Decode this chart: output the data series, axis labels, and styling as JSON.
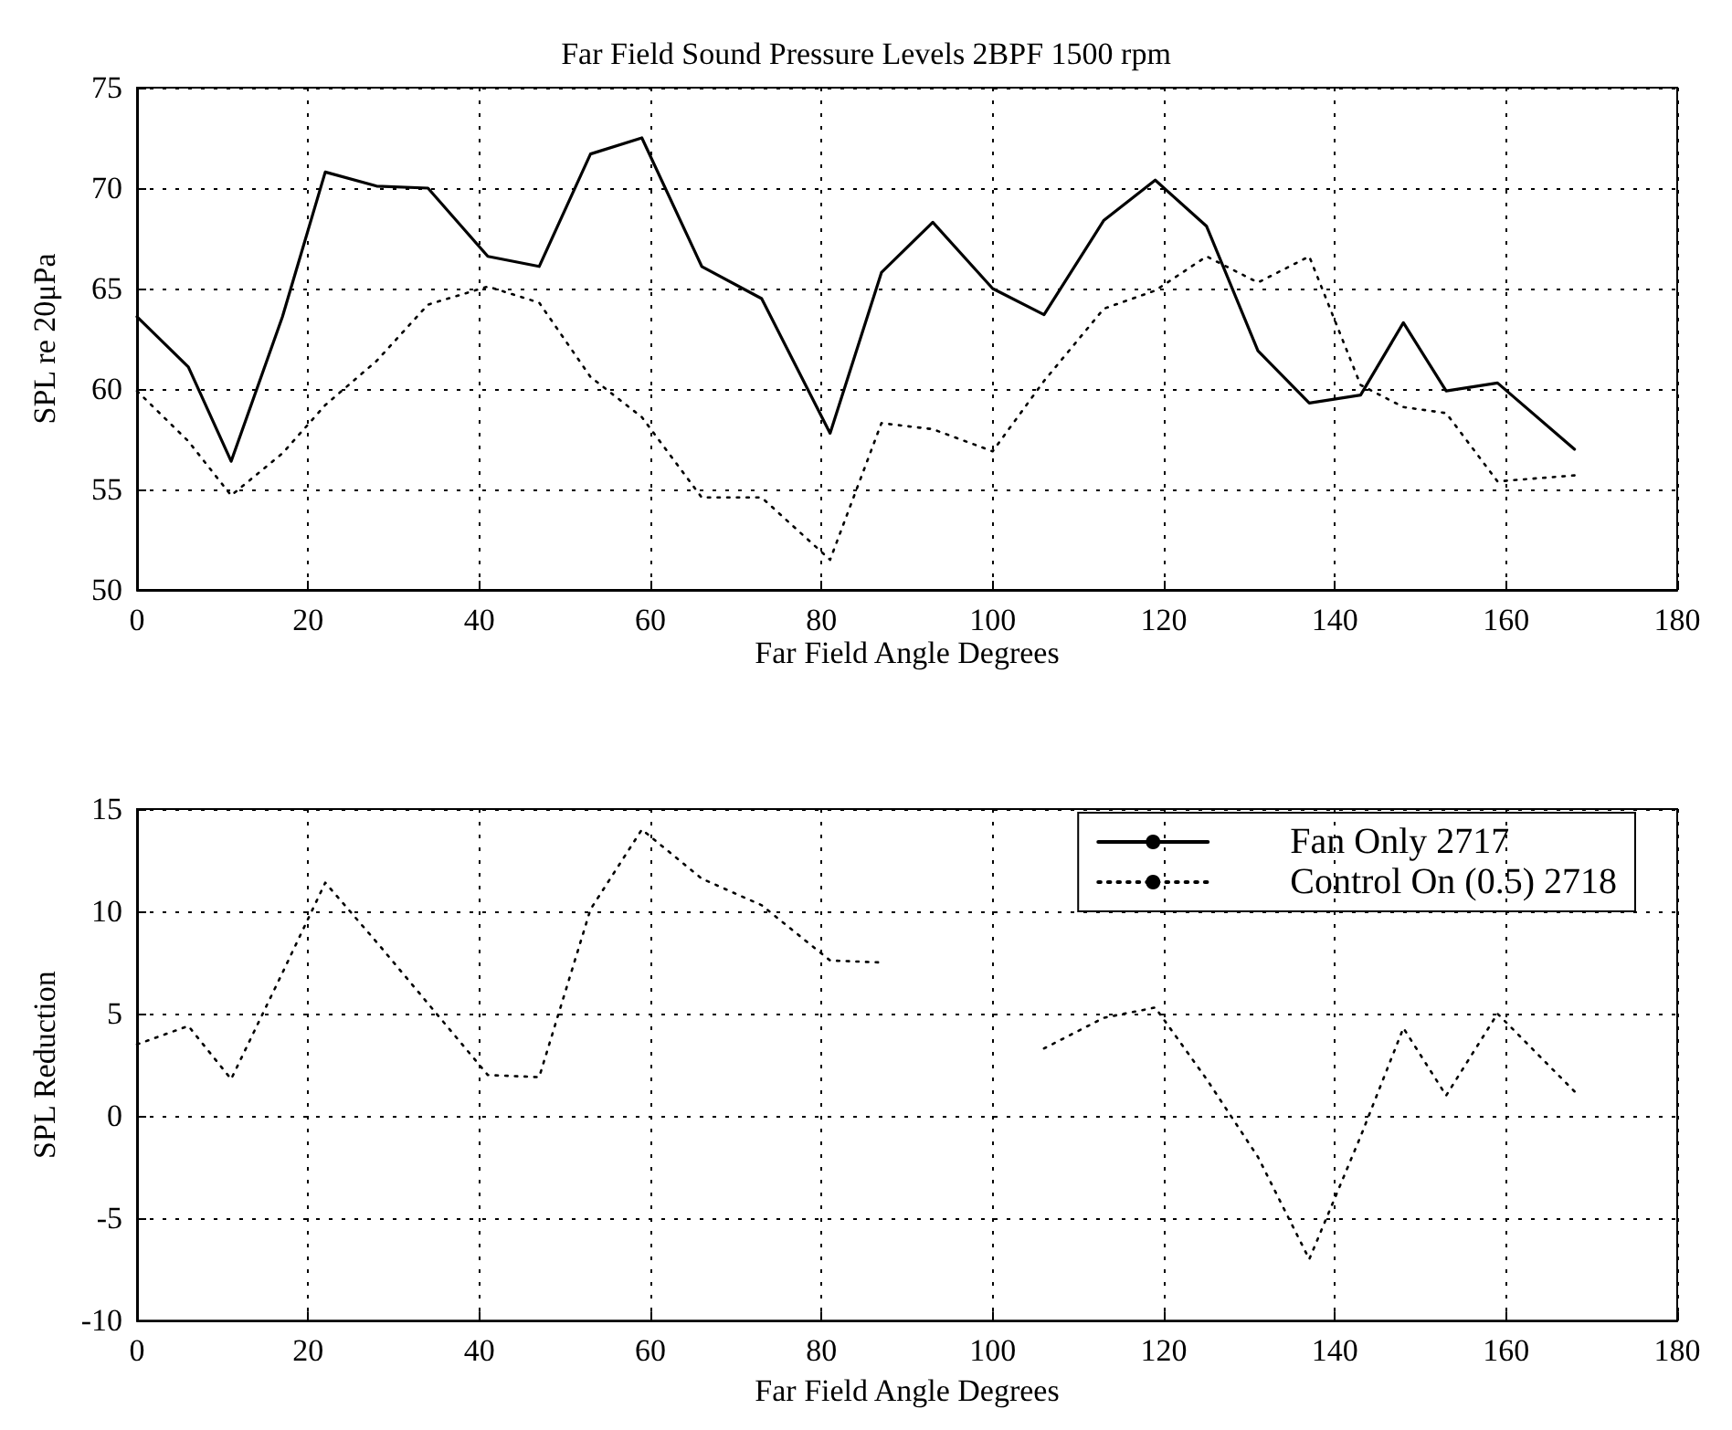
{
  "chart_data": [
    {
      "type": "line",
      "title": "Far Field Sound Pressure Levels 2BPF 1500 rpm",
      "xlabel": "Far Field Angle Degrees",
      "ylabel": "SPL re 20μPa",
      "x": [
        0,
        6,
        11,
        17,
        22,
        28,
        34,
        41,
        47,
        53,
        59,
        66,
        73,
        81,
        87,
        93,
        100,
        106,
        113,
        119,
        125,
        131,
        137,
        143,
        148,
        153,
        159,
        168
      ],
      "series": [
        {
          "name": "Fan Only 2717",
          "color": "#000000",
          "line_style": "solid",
          "values": [
            63.6,
            61.1,
            56.4,
            63.6,
            70.8,
            70.1,
            70.0,
            66.6,
            66.1,
            71.7,
            72.5,
            66.1,
            64.5,
            57.8,
            65.8,
            68.3,
            65.0,
            63.7,
            68.4,
            70.4,
            68.1,
            61.9,
            59.3,
            59.7,
            63.3,
            59.9,
            60.3,
            57.0
          ]
        },
        {
          "name": "Control On (0.5) 2718",
          "color": "#000000",
          "line_style": "dotted",
          "values": [
            59.9,
            57.4,
            54.7,
            56.8,
            59.2,
            61.4,
            64.2,
            65.1,
            64.3,
            60.6,
            58.6,
            54.6,
            54.6,
            51.5,
            58.3,
            58.0,
            56.9,
            60.4,
            64.0,
            64.9,
            66.6,
            65.3,
            66.6,
            60.2,
            59.1,
            58.8,
            55.4,
            55.7
          ]
        }
      ],
      "xlim": [
        0,
        180
      ],
      "xticks": [
        0,
        20,
        40,
        60,
        80,
        100,
        120,
        140,
        160,
        180
      ],
      "ylim": [
        50,
        75
      ],
      "yticks": [
        50,
        55,
        60,
        65,
        70,
        75
      ],
      "grid": true,
      "legend": "bottom right"
    },
    {
      "type": "line",
      "xlabel": "Far Field Angle Degrees",
      "ylabel": "SPL Reduction",
      "x": [
        0,
        6,
        11,
        17,
        22,
        28,
        34,
        41,
        47,
        53,
        59,
        66,
        73,
        81,
        87,
        93,
        100,
        106,
        113,
        119,
        125,
        131,
        137,
        143,
        148,
        153,
        159,
        168
      ],
      "series": [
        {
          "color": "#000000",
          "line_style": "dotted",
          "values": [
            3.5,
            4.4,
            1.8,
            7.0,
            11.4,
            8.5,
            5.5,
            2.0,
            1.9,
            10.1,
            14.0,
            11.6,
            10.3,
            7.6,
            7.5,
            null,
            null,
            3.3,
            4.8,
            5.3,
            1.8,
            -2.0,
            -7.0,
            -1.0,
            4.3,
            1.0,
            5.0,
            1.2
          ]
        }
      ],
      "xlim": [
        0,
        180
      ],
      "xticks": [
        0,
        20,
        40,
        60,
        80,
        100,
        120,
        140,
        160,
        180
      ],
      "ylim": [
        -10,
        15
      ],
      "yticks": [
        -10,
        -5,
        0,
        5,
        10,
        15
      ],
      "grid": true
    }
  ]
}
